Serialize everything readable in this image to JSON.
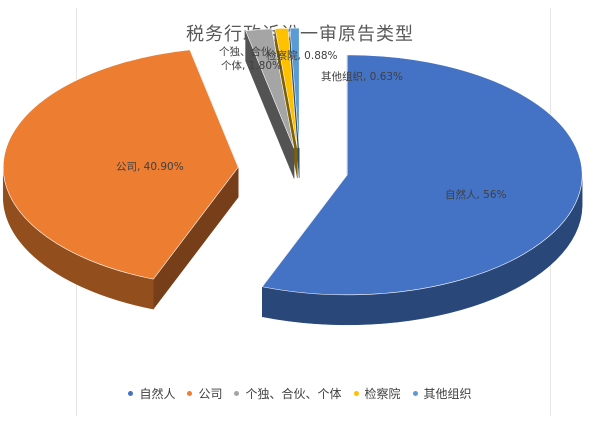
{
  "chart_data": {
    "type": "pie",
    "title": "税务行政诉讼一审原告类型",
    "unit": "%",
    "slices": [
      {
        "name": "自然人",
        "value": 56,
        "label": "自然人, 56%",
        "color": "#4472C4"
      },
      {
        "name": "公司",
        "value": 40.9,
        "label": "公司, 40.90%",
        "color": "#ED7D31"
      },
      {
        "name": "个独、合伙、个体",
        "value": 1.8,
        "label": "个独、合伙、个体, 1.80%",
        "label_lines": [
          "个独、合伙、",
          "个体, 1.80%"
        ],
        "color": "#A5A5A5"
      },
      {
        "name": "检察院",
        "value": 0.88,
        "label": "检察院, 0.88%",
        "color": "#FFC000"
      },
      {
        "name": "其他组织",
        "value": 0.63,
        "label": "其他组织, 0.63%",
        "color": "#5B9BD5"
      }
    ],
    "legend_position": "bottom",
    "style": "3d-exploded"
  }
}
